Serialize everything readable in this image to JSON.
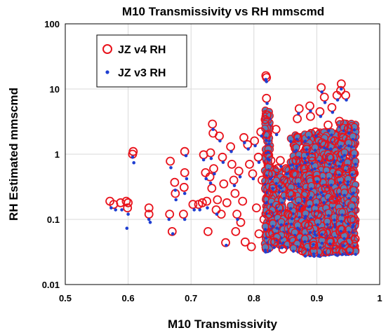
{
  "chart_data": {
    "type": "scatter",
    "title": "M10 Transmissivity vs RH mmscmd",
    "xlabel": "M10 Transmissivity",
    "ylabel": "RH Estimated mmscmd",
    "xlim": [
      0.5,
      1.0
    ],
    "ylim": [
      0.01,
      100
    ],
    "y_scale": "log",
    "grid": true,
    "legend_position": "top-left",
    "x_ticks": [
      "0.5",
      "0.6",
      "0.7",
      "0.8",
      "0.9",
      "1"
    ],
    "y_ticks": [
      "0.01",
      "0.1",
      "1",
      "10",
      "100"
    ],
    "x_tick_values": [
      0.5,
      0.6,
      0.7,
      0.8,
      0.9,
      1.0
    ],
    "y_tick_values": [
      0.01,
      0.1,
      1,
      10,
      100
    ],
    "series": [
      {
        "name": "JZ v4 RH",
        "marker": "open-circle",
        "color": "#e8121b",
        "points": [
          [
            0.571,
            0.19
          ],
          [
            0.577,
            0.17
          ],
          [
            0.588,
            0.18
          ],
          [
            0.597,
            0.19
          ],
          [
            0.599,
            0.15
          ],
          [
            0.6,
            0.18
          ],
          [
            0.607,
            1.0
          ],
          [
            0.608,
            1.1
          ],
          [
            0.633,
            0.15
          ],
          [
            0.633,
            0.12
          ],
          [
            0.666,
            0.12
          ],
          [
            0.667,
            0.78
          ],
          [
            0.67,
            0.065
          ],
          [
            0.674,
            0.37
          ],
          [
            0.675,
            0.25
          ],
          [
            0.688,
            0.12
          ],
          [
            0.689,
            0.31
          ],
          [
            0.69,
            1.1
          ],
          [
            0.69,
            0.52
          ],
          [
            0.703,
            0.17
          ],
          [
            0.712,
            0.17
          ],
          [
            0.718,
            0.18
          ],
          [
            0.72,
            0.98
          ],
          [
            0.723,
            0.52
          ],
          [
            0.725,
            0.19
          ],
          [
            0.727,
            0.065
          ],
          [
            0.73,
            0.45
          ],
          [
            0.731,
            1.05
          ],
          [
            0.733,
            0.3
          ],
          [
            0.734,
            2.9
          ],
          [
            0.735,
            2.1
          ],
          [
            0.736,
            0.6
          ],
          [
            0.74,
            0.14
          ],
          [
            0.742,
            0.2
          ],
          [
            0.745,
            1.9
          ],
          [
            0.748,
            0.12
          ],
          [
            0.75,
            0.9
          ],
          [
            0.752,
            0.35
          ],
          [
            0.755,
            0.044
          ],
          [
            0.757,
            0.18
          ],
          [
            0.763,
            1.3
          ],
          [
            0.765,
            0.7
          ],
          [
            0.768,
            0.4
          ],
          [
            0.77,
            0.25
          ],
          [
            0.771,
            0.065
          ],
          [
            0.773,
            0.12
          ],
          [
            0.776,
            0.55
          ],
          [
            0.779,
            0.09
          ],
          [
            0.782,
            0.19
          ],
          [
            0.784,
            1.8
          ],
          [
            0.786,
            0.045
          ],
          [
            0.79,
            1.4
          ],
          [
            0.793,
            0.7
          ],
          [
            0.796,
            0.038
          ],
          [
            0.798,
            0.5
          ],
          [
            0.801,
            1.6
          ],
          [
            0.804,
            0.15
          ],
          [
            0.807,
            0.9
          ],
          [
            0.808,
            0.06
          ],
          [
            0.811,
            2.2
          ],
          [
            0.813,
            0.4
          ],
          [
            0.816,
            0.1
          ],
          [
            0.818,
            3.4
          ],
          [
            0.819,
            16.0
          ],
          [
            0.82,
            15.0
          ],
          [
            0.82,
            7.2
          ],
          [
            0.821,
            4.0
          ],
          [
            0.821,
            2.0
          ],
          [
            0.822,
            1.0
          ],
          [
            0.823,
            0.5
          ],
          [
            0.824,
            0.25
          ],
          [
            0.824,
            0.12
          ],
          [
            0.825,
            0.06
          ],
          [
            0.827,
            0.8
          ],
          [
            0.83,
            0.3
          ],
          [
            0.833,
            0.045
          ],
          [
            0.835,
            2.4
          ],
          [
            0.837,
            0.6
          ],
          [
            0.84,
            0.15
          ],
          [
            0.842,
            0.8
          ],
          [
            0.846,
            0.035
          ],
          [
            0.848,
            0.4
          ],
          [
            0.851,
            0.6
          ],
          [
            0.854,
            0.12
          ],
          [
            0.857,
            0.25
          ],
          [
            0.86,
            0.05
          ],
          [
            0.863,
            0.5
          ],
          [
            0.867,
            0.8
          ],
          [
            0.869,
            3.5
          ],
          [
            0.87,
            1.8
          ],
          [
            0.872,
            5.0
          ],
          [
            0.874,
            0.15
          ],
          [
            0.877,
            0.033
          ],
          [
            0.88,
            0.6
          ],
          [
            0.882,
            0.25
          ],
          [
            0.884,
            1.2
          ],
          [
            0.887,
            0.08
          ],
          [
            0.889,
            5.5
          ],
          [
            0.89,
            3.8
          ],
          [
            0.892,
            0.9
          ],
          [
            0.895,
            0.04
          ],
          [
            0.898,
            2.2
          ],
          [
            0.9,
            0.4
          ],
          [
            0.902,
            0.12
          ],
          [
            0.905,
            4.5
          ],
          [
            0.907,
            10.5
          ],
          [
            0.908,
            1.5
          ],
          [
            0.91,
            0.06
          ],
          [
            0.912,
            7.5
          ],
          [
            0.914,
            0.3
          ],
          [
            0.916,
            0.032
          ],
          [
            0.918,
            2.8
          ],
          [
            0.92,
            0.9
          ],
          [
            0.922,
            0.045
          ],
          [
            0.924,
            5.2
          ],
          [
            0.926,
            0.2
          ],
          [
            0.928,
            1.6
          ],
          [
            0.93,
            0.035
          ],
          [
            0.932,
            8.0
          ],
          [
            0.934,
            0.5
          ],
          [
            0.936,
            3.2
          ],
          [
            0.938,
            9.5
          ],
          [
            0.939,
            12.0
          ],
          [
            0.94,
            0.07
          ],
          [
            0.942,
            1.8
          ],
          [
            0.944,
            0.04
          ],
          [
            0.946,
            8.0
          ],
          [
            0.948,
            0.6
          ],
          [
            0.95,
            2.5
          ],
          [
            0.952,
            0.033
          ],
          [
            0.955,
            0.1
          ],
          [
            0.958,
            0.5
          ],
          [
            0.961,
            0.05
          ]
        ]
      },
      {
        "name": "JZ v3 RH",
        "marker": "filled-dot",
        "color": "#1f3fd1",
        "points": [
          [
            0.573,
            0.15
          ],
          [
            0.58,
            0.14
          ],
          [
            0.59,
            0.14
          ],
          [
            0.598,
            0.073
          ],
          [
            0.6,
            0.12
          ],
          [
            0.607,
            0.9
          ],
          [
            0.609,
            0.74
          ],
          [
            0.633,
            0.1
          ],
          [
            0.635,
            0.09
          ],
          [
            0.665,
            0.1
          ],
          [
            0.668,
            0.62
          ],
          [
            0.671,
            0.06
          ],
          [
            0.675,
            0.28
          ],
          [
            0.676,
            0.2
          ],
          [
            0.69,
            0.1
          ],
          [
            0.69,
            0.25
          ],
          [
            0.692,
            0.95
          ],
          [
            0.693,
            0.42
          ],
          [
            0.705,
            0.14
          ],
          [
            0.714,
            0.14
          ],
          [
            0.72,
            0.82
          ],
          [
            0.724,
            0.42
          ],
          [
            0.726,
            0.15
          ],
          [
            0.731,
            0.36
          ],
          [
            0.732,
            0.86
          ],
          [
            0.735,
            2.4
          ],
          [
            0.737,
            0.5
          ],
          [
            0.741,
            0.12
          ],
          [
            0.746,
            1.6
          ],
          [
            0.751,
            0.75
          ],
          [
            0.756,
            0.04
          ],
          [
            0.764,
            1.1
          ],
          [
            0.769,
            0.33
          ],
          [
            0.774,
            0.1
          ],
          [
            0.778,
            0.45
          ],
          [
            0.785,
            1.5
          ],
          [
            0.791,
            1.2
          ],
          [
            0.799,
            0.42
          ],
          [
            0.802,
            1.35
          ],
          [
            0.808,
            0.75
          ],
          [
            0.812,
            1.9
          ],
          [
            0.819,
            14.0
          ],
          [
            0.82,
            13.0
          ],
          [
            0.821,
            6.0
          ],
          [
            0.822,
            0.85
          ],
          [
            0.826,
            0.42
          ],
          [
            0.836,
            2.0
          ],
          [
            0.843,
            0.65
          ],
          [
            0.852,
            0.5
          ],
          [
            0.868,
            0.65
          ],
          [
            0.871,
            4.2
          ],
          [
            0.885,
            1.0
          ],
          [
            0.89,
            4.6
          ],
          [
            0.899,
            1.9
          ],
          [
            0.906,
            3.8
          ],
          [
            0.908,
            9.0
          ],
          [
            0.913,
            6.2
          ],
          [
            0.919,
            2.3
          ],
          [
            0.925,
            4.4
          ],
          [
            0.933,
            6.8
          ],
          [
            0.939,
            10.0
          ],
          [
            0.947,
            6.8
          ],
          [
            0.951,
            2.1
          ]
        ]
      }
    ]
  },
  "legend": {
    "items": [
      {
        "label": "JZ v4 RH",
        "color": "#e8121b",
        "marker": "open-circle"
      },
      {
        "label": "JZ v3 RH",
        "color": "#1f3fd1",
        "marker": "filled-dot"
      }
    ]
  },
  "colors": {
    "grid": "#d9d9d9",
    "axis": "#000000",
    "v4": "#e8121b",
    "v3": "#1f3fd1",
    "dense_fill": "#5a80b8"
  }
}
